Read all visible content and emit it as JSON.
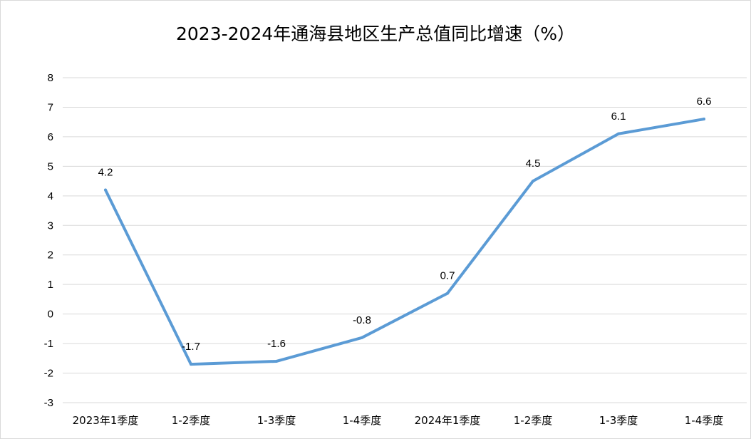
{
  "chart_data": {
    "type": "line",
    "title": "2023-2024年通海县地区生产总值同比增速（%）",
    "categories": [
      "2023年1季度",
      "1-2季度",
      "1-3季度",
      "1-4季度",
      "2024年1季度",
      "1-2季度",
      "1-3季度",
      "1-4季度"
    ],
    "series": [
      {
        "values": [
          4.2,
          -1.7,
          -1.6,
          -0.8,
          0.7,
          4.5,
          6.1,
          6.6
        ],
        "color": "#5b9bd5"
      }
    ],
    "data_labels": [
      "4.2",
      "-1.7",
      "-1.6",
      "-0.8",
      "0.7",
      "4.5",
      "6.1",
      "6.6"
    ],
    "ylim": [
      -3,
      8
    ],
    "yticks": [
      "8",
      "7",
      "6",
      "5",
      "4",
      "3",
      "2",
      "1",
      "0",
      "-1",
      "-2",
      "-3"
    ],
    "xlabel": "",
    "ylabel": "",
    "grid": true,
    "legend": "none",
    "gridline_color": "#d9d9d9"
  }
}
